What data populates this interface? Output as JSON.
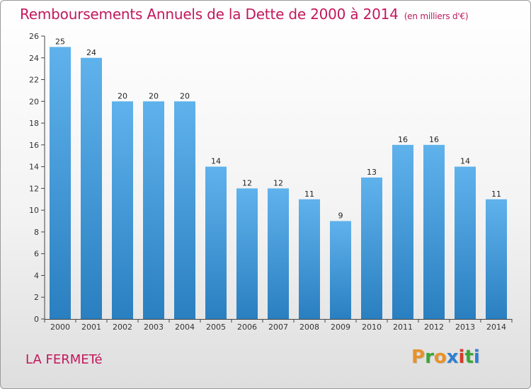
{
  "header": {
    "title": "Remboursements Annuels de la Dette de 2000 à 2014",
    "unit": "(en milliers d'€)"
  },
  "footer": {
    "place": "LA FERMETé",
    "logo": [
      "P",
      "r",
      "o",
      "x",
      "i",
      "t",
      "i"
    ]
  },
  "colors": {
    "title": "#c2185b",
    "bar_top": "#5fb2ec",
    "bar_bottom": "#2a7fc0",
    "logo": [
      "#e8922a",
      "#3ba635",
      "#e8922a",
      "#2f7fd0",
      "#d43a2a",
      "#3ba635",
      "#2f7fd0"
    ]
  },
  "chart_data": {
    "type": "bar",
    "title": "Remboursements Annuels de la Dette de 2000 à 2014",
    "subtitle": "(en milliers d'€)",
    "categories": [
      "2000",
      "2001",
      "2002",
      "2003",
      "2004",
      "2005",
      "2006",
      "2007",
      "2008",
      "2009",
      "2010",
      "2011",
      "2012",
      "2013",
      "2014"
    ],
    "values": [
      25,
      24,
      20,
      20,
      20,
      14,
      12,
      12,
      11,
      9,
      13,
      16,
      16,
      14,
      11
    ],
    "yticks": [
      0,
      2,
      4,
      6,
      8,
      10,
      12,
      14,
      16,
      18,
      20,
      22,
      24,
      26
    ],
    "ylim": [
      0,
      26
    ],
    "xlabel": "",
    "ylabel": "",
    "grid": false,
    "legend": "none"
  }
}
